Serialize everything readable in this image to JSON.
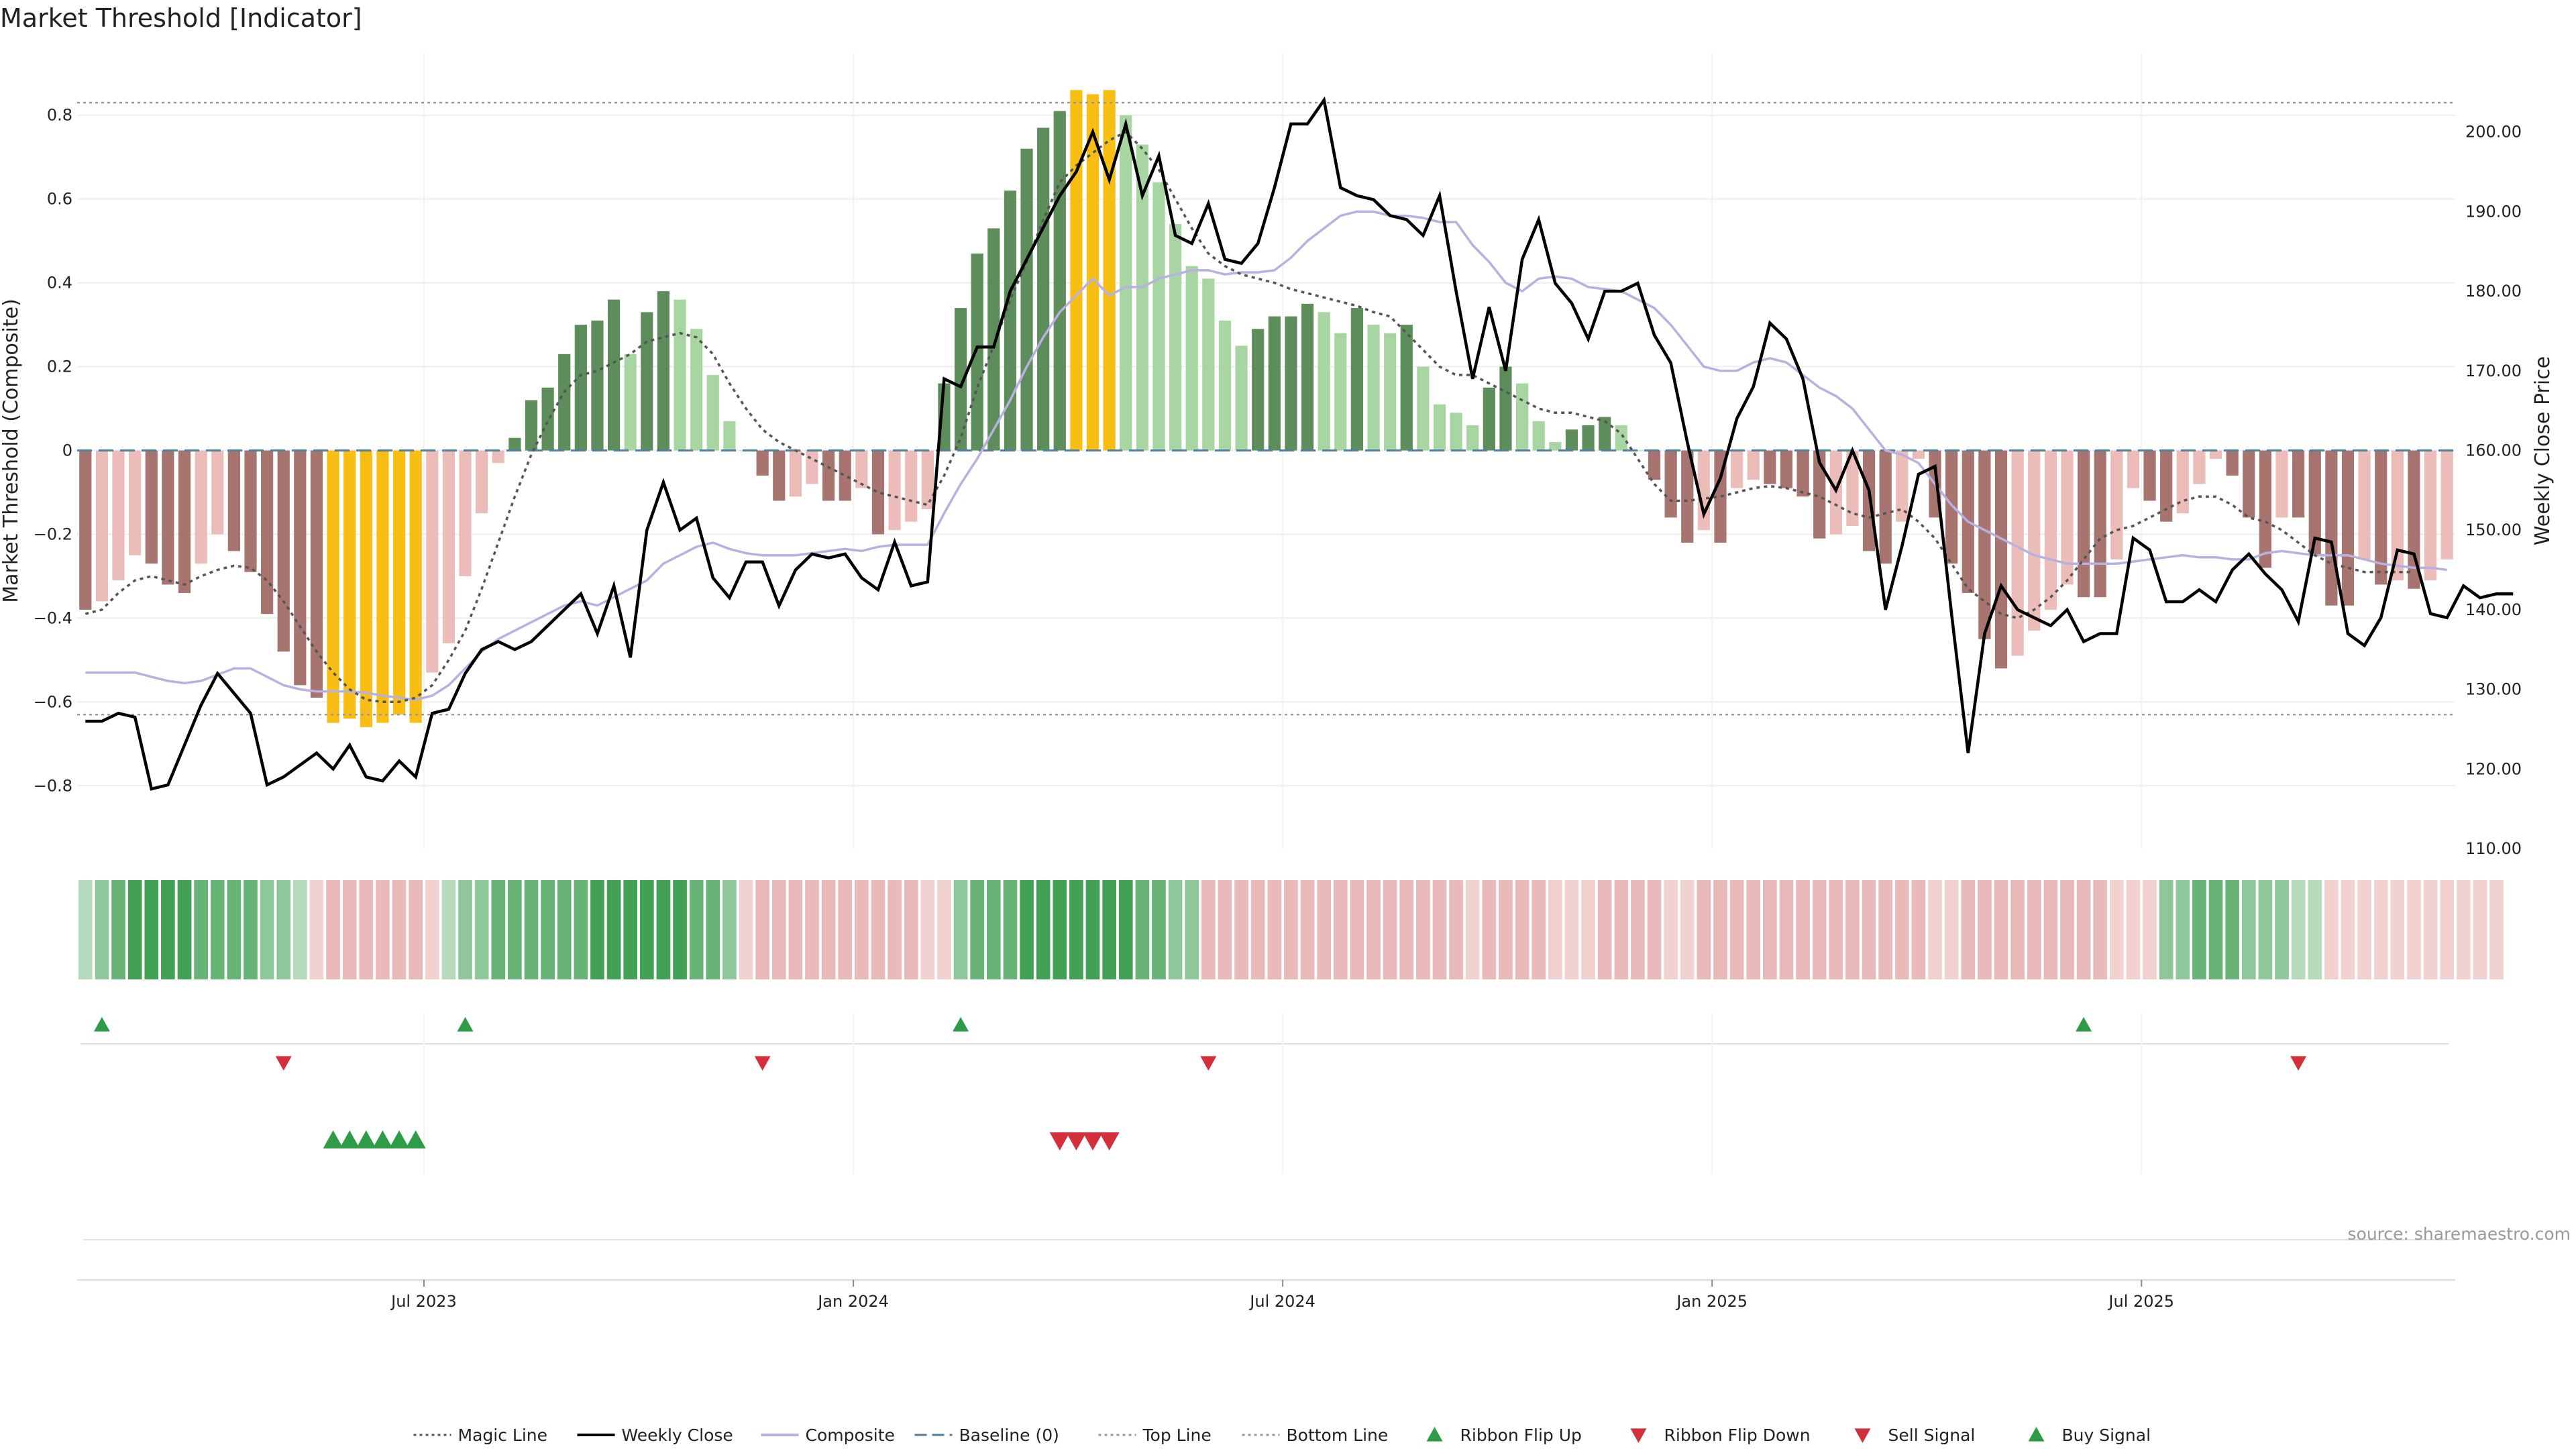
{
  "title": "Market Threshold [Indicator]",
  "source": "source: sharemaestro.com",
  "legend": {
    "items": [
      {
        "label": "Magic Line",
        "kind": "dotted-line",
        "color": "#555555"
      },
      {
        "label": "Weekly Close",
        "kind": "line",
        "color": "#000000"
      },
      {
        "label": "Composite",
        "kind": "line",
        "color": "#b8b0e0"
      },
      {
        "label": "Baseline (0)",
        "kind": "dashed-line",
        "color": "#4f7f9f"
      },
      {
        "label": "Top Line",
        "kind": "dotted-line",
        "color": "#999999"
      },
      {
        "label": "Bottom Line",
        "kind": "dotted-line",
        "color": "#999999"
      },
      {
        "label": "Ribbon Flip Up",
        "kind": "triangle-up",
        "color": "#2e9c46"
      },
      {
        "label": "Ribbon Flip Down",
        "kind": "triangle-down",
        "color": "#d3303c"
      },
      {
        "label": "Sell Signal",
        "kind": "triangle-down",
        "color": "#d3303c"
      },
      {
        "label": "Buy Signal",
        "kind": "triangle-up",
        "color": "#2e9c46"
      }
    ]
  },
  "colors": {
    "bar_dark_green": "#5e8d5c",
    "bar_light_green": "#a8d6a2",
    "bar_dark_red": "#a87470",
    "bar_light_red": "#ecbdb8",
    "bar_extreme": "#f8be14",
    "ribbon_green": "#3d9e4f",
    "ribbon_red": "#d98886",
    "signal_up": "#2e9c46",
    "signal_down": "#d3303c"
  },
  "chart_data": {
    "type": "bar",
    "title": "Market Threshold [Indicator]",
    "xlabel": "",
    "ylabel": "Market Threshold (Composite)",
    "ylabel_right": "Weekly Close Price",
    "ylim": [
      -0.95,
      0.95
    ],
    "ylim_right": [
      110,
      210
    ],
    "y_ticks": [
      {
        "value": -0.8,
        "label": "−0.8"
      },
      {
        "value": -0.6,
        "label": "−0.6"
      },
      {
        "value": -0.4,
        "label": "−0.4"
      },
      {
        "value": -0.2,
        "label": "−0.2"
      },
      {
        "value": 0,
        "label": "0"
      },
      {
        "value": 0.2,
        "label": "0.2"
      },
      {
        "value": 0.4,
        "label": "0.4"
      },
      {
        "value": 0.6,
        "label": "0.6"
      },
      {
        "value": 0.8,
        "label": "0.8"
      }
    ],
    "y_ticks_right": [
      {
        "value": 110,
        "label": "110.00"
      },
      {
        "value": 120,
        "label": "120.00"
      },
      {
        "value": 130,
        "label": "130.00"
      },
      {
        "value": 140,
        "label": "140.00"
      },
      {
        "value": 150,
        "label": "150.00"
      },
      {
        "value": 160,
        "label": "160.00"
      },
      {
        "value": 170,
        "label": "170.00"
      },
      {
        "value": 180,
        "label": "180.00"
      },
      {
        "value": 190,
        "label": "190.00"
      },
      {
        "value": 200,
        "label": "200.00"
      }
    ],
    "x_ticks": [
      {
        "index": 20.5,
        "label": "Jul 2023"
      },
      {
        "index": 46.5,
        "label": "Jan 2024"
      },
      {
        "index": 72.5,
        "label": "Jul 2024"
      },
      {
        "index": 98.5,
        "label": "Jan 2025"
      },
      {
        "index": 124.5,
        "label": "Jul 2025"
      }
    ],
    "top_line": 0.83,
    "bottom_line": -0.63,
    "baseline": 0,
    "bars": [
      -0.38,
      -0.36,
      -0.31,
      -0.25,
      -0.27,
      -0.32,
      -0.34,
      -0.27,
      -0.2,
      -0.24,
      -0.29,
      -0.39,
      -0.48,
      -0.56,
      -0.59,
      -0.65,
      -0.64,
      -0.66,
      -0.65,
      -0.63,
      -0.65,
      -0.53,
      -0.46,
      -0.3,
      -0.15,
      -0.03,
      0.03,
      0.12,
      0.15,
      0.23,
      0.3,
      0.31,
      0.36,
      0.23,
      0.33,
      0.38,
      0.36,
      0.29,
      0.18,
      0.07,
      0,
      -0.06,
      -0.12,
      -0.11,
      -0.08,
      -0.12,
      -0.12,
      -0.09,
      -0.2,
      -0.19,
      -0.17,
      -0.14,
      0.16,
      0.34,
      0.47,
      0.53,
      0.62,
      0.72,
      0.77,
      0.81,
      0.86,
      0.85,
      0.86,
      0.8,
      0.73,
      0.64,
      0.54,
      0.44,
      0.41,
      0.31,
      0.25,
      0.29,
      0.32,
      0.32,
      0.35,
      0.33,
      0.28,
      0.34,
      0.3,
      0.28,
      0.3,
      0.2,
      0.11,
      0.09,
      0.06,
      0.15,
      0.2,
      0.16,
      0.07,
      0.02,
      0.05,
      0.06,
      0.08,
      0.06,
      0,
      -0.07,
      -0.16,
      -0.22,
      -0.19,
      -0.22,
      -0.09,
      -0.07,
      -0.08,
      -0.09,
      -0.11,
      -0.21,
      -0.2,
      -0.18,
      -0.24,
      -0.27,
      -0.17,
      -0.02,
      -0.16,
      -0.27,
      -0.34,
      -0.45,
      -0.52,
      -0.49,
      -0.43,
      -0.38,
      -0.32,
      -0.35,
      -0.35,
      -0.26,
      -0.09,
      -0.12,
      -0.17,
      -0.15,
      -0.08,
      -0.02,
      -0.06,
      -0.16,
      -0.28,
      -0.16,
      -0.16,
      -0.25,
      -0.37,
      -0.37,
      -0.26,
      -0.32,
      -0.31,
      -0.33,
      -0.31,
      -0.26
    ],
    "weekly_close": [
      126,
      126,
      127,
      126.5,
      117.5,
      118,
      123,
      128,
      132,
      129.5,
      127,
      118,
      119,
      120.5,
      122,
      120,
      123,
      119,
      118.5,
      121,
      119,
      127,
      127.5,
      132,
      135,
      136,
      135,
      136,
      138,
      140,
      142,
      137,
      143,
      134,
      150,
      156,
      150,
      151.5,
      144,
      141.5,
      146,
      146,
      140.5,
      145,
      147,
      146.5,
      147,
      144,
      142.5,
      148.5,
      143,
      143.5,
      169,
      168,
      173,
      173,
      180,
      184,
      188,
      192,
      195,
      200,
      194,
      201,
      192,
      197,
      187,
      186,
      191,
      184,
      183.5,
      186,
      193,
      201,
      201,
      204,
      193,
      192,
      191.5,
      189.5,
      189,
      187,
      192,
      180,
      169,
      178,
      170,
      184,
      189,
      181,
      178.5,
      174,
      180,
      180,
      181,
      174.5,
      171,
      161,
      152,
      156.5,
      164,
      168,
      176,
      174,
      169,
      158.5,
      155,
      160,
      155,
      140,
      148,
      157,
      158,
      139.5,
      122,
      137,
      143,
      140,
      139,
      138,
      140,
      136,
      137,
      137,
      149,
      147.5,
      141,
      141,
      142.5,
      141,
      145,
      147,
      144.5,
      142.5,
      138.5,
      149,
      148.5,
      137,
      135.5,
      139,
      147.5,
      147,
      139.5,
      139,
      143,
      141.5,
      142,
      142
    ],
    "composite": [
      -0.53,
      -0.53,
      -0.53,
      -0.53,
      -0.54,
      -0.55,
      -0.555,
      -0.55,
      -0.535,
      -0.52,
      -0.52,
      -0.54,
      -0.56,
      -0.57,
      -0.575,
      -0.575,
      -0.575,
      -0.578,
      -0.585,
      -0.59,
      -0.595,
      -0.585,
      -0.56,
      -0.52,
      -0.48,
      -0.45,
      -0.43,
      -0.41,
      -0.39,
      -0.37,
      -0.36,
      -0.37,
      -0.35,
      -0.33,
      -0.31,
      -0.27,
      -0.25,
      -0.23,
      -0.22,
      -0.235,
      -0.245,
      -0.25,
      -0.25,
      -0.25,
      -0.245,
      -0.24,
      -0.235,
      -0.24,
      -0.23,
      -0.225,
      -0.225,
      -0.225,
      -0.15,
      -0.08,
      -0.02,
      0.05,
      0.12,
      0.2,
      0.27,
      0.33,
      0.37,
      0.41,
      0.37,
      0.39,
      0.39,
      0.41,
      0.42,
      0.43,
      0.43,
      0.42,
      0.425,
      0.425,
      0.43,
      0.46,
      0.5,
      0.53,
      0.56,
      0.57,
      0.57,
      0.56,
      0.56,
      0.555,
      0.545,
      0.545,
      0.49,
      0.45,
      0.4,
      0.38,
      0.41,
      0.415,
      0.41,
      0.39,
      0.385,
      0.38,
      0.36,
      0.34,
      0.3,
      0.25,
      0.2,
      0.19,
      0.19,
      0.21,
      0.22,
      0.21,
      0.18,
      0.15,
      0.13,
      0.1,
      0.05,
      0,
      -0.01,
      -0.03,
      -0.08,
      -0.13,
      -0.17,
      -0.19,
      -0.21,
      -0.23,
      -0.25,
      -0.26,
      -0.27,
      -0.27,
      -0.27,
      -0.27,
      -0.265,
      -0.26,
      -0.255,
      -0.25,
      -0.255,
      -0.255,
      -0.26,
      -0.26,
      -0.245,
      -0.24,
      -0.245,
      -0.25,
      -0.25,
      -0.25,
      -0.26,
      -0.27,
      -0.275,
      -0.28,
      -0.28,
      -0.285
    ],
    "magic_line": [
      -0.39,
      -0.38,
      -0.34,
      -0.31,
      -0.3,
      -0.31,
      -0.32,
      -0.3,
      -0.285,
      -0.275,
      -0.28,
      -0.31,
      -0.36,
      -0.42,
      -0.48,
      -0.53,
      -0.57,
      -0.595,
      -0.6,
      -0.6,
      -0.59,
      -0.56,
      -0.5,
      -0.43,
      -0.33,
      -0.22,
      -0.11,
      -0.01,
      0.07,
      0.14,
      0.18,
      0.19,
      0.21,
      0.23,
      0.26,
      0.27,
      0.28,
      0.27,
      0.23,
      0.16,
      0.1,
      0.05,
      0.02,
      0,
      -0.02,
      -0.04,
      -0.06,
      -0.08,
      -0.1,
      -0.11,
      -0.12,
      -0.13,
      -0.06,
      0.03,
      0.15,
      0.25,
      0.36,
      0.45,
      0.55,
      0.64,
      0.68,
      0.71,
      0.74,
      0.76,
      0.72,
      0.67,
      0.6,
      0.53,
      0.47,
      0.44,
      0.42,
      0.41,
      0.4,
      0.385,
      0.375,
      0.365,
      0.355,
      0.345,
      0.33,
      0.32,
      0.28,
      0.24,
      0.2,
      0.18,
      0.18,
      0.16,
      0.14,
      0.12,
      0.1,
      0.09,
      0.09,
      0.08,
      0.07,
      0.04,
      -0.02,
      -0.08,
      -0.12,
      -0.12,
      -0.115,
      -0.11,
      -0.1,
      -0.09,
      -0.085,
      -0.09,
      -0.1,
      -0.11,
      -0.13,
      -0.15,
      -0.16,
      -0.15,
      -0.14,
      -0.17,
      -0.21,
      -0.27,
      -0.33,
      -0.36,
      -0.39,
      -0.4,
      -0.38,
      -0.35,
      -0.31,
      -0.26,
      -0.21,
      -0.19,
      -0.18,
      -0.16,
      -0.14,
      -0.12,
      -0.11,
      -0.11,
      -0.13,
      -0.16,
      -0.17,
      -0.19,
      -0.22,
      -0.25,
      -0.27,
      -0.28,
      -0.29,
      -0.29,
      -0.29,
      -0.29
    ],
    "ribbon": [
      1,
      2,
      3,
      4,
      4,
      4,
      4,
      3,
      3,
      3,
      3,
      2,
      2,
      1,
      -1,
      -2,
      -2,
      -2,
      -2,
      -2,
      -2,
      -1,
      1,
      2,
      2,
      3,
      3,
      3,
      3,
      3,
      3,
      4,
      4,
      4,
      4,
      4,
      4,
      3,
      3,
      2,
      -1,
      -2,
      -2,
      -2,
      -2,
      -2,
      -2,
      -2,
      -2,
      -2,
      -2,
      -1,
      -1,
      2,
      3,
      3,
      3,
      4,
      4,
      4,
      4,
      4,
      4,
      4,
      3,
      3,
      2,
      2,
      -2,
      -2,
      -2,
      -2,
      -2,
      -2,
      -2,
      -2,
      -2,
      -2,
      -2,
      -2,
      -2,
      -2,
      -2,
      -2,
      -1,
      -2,
      -2,
      -2,
      -2,
      -1,
      -1,
      -1,
      -2,
      -2,
      -2,
      -2,
      -1,
      -1,
      -2,
      -2,
      -2,
      -2,
      -2,
      -2,
      -2,
      -2,
      -2,
      -2,
      -2,
      -2,
      -2,
      -2,
      -1,
      -1,
      -2,
      -2,
      -2,
      -2,
      -2,
      -2,
      -2,
      -2,
      -2,
      -1,
      -1,
      -1,
      2,
      2,
      3,
      3,
      3,
      2,
      2,
      2,
      1,
      1,
      -1,
      -1,
      -1,
      -1,
      -1,
      -1,
      -1,
      -1,
      -1,
      -1,
      -1
    ],
    "ribbon_flip_up": [
      1,
      23,
      53,
      121
    ],
    "ribbon_flip_down": [
      12,
      41,
      68,
      134
    ],
    "buy_signals": [
      15,
      16,
      17,
      18,
      19,
      20
    ],
    "sell_signals": [
      59,
      60,
      61,
      62
    ]
  }
}
